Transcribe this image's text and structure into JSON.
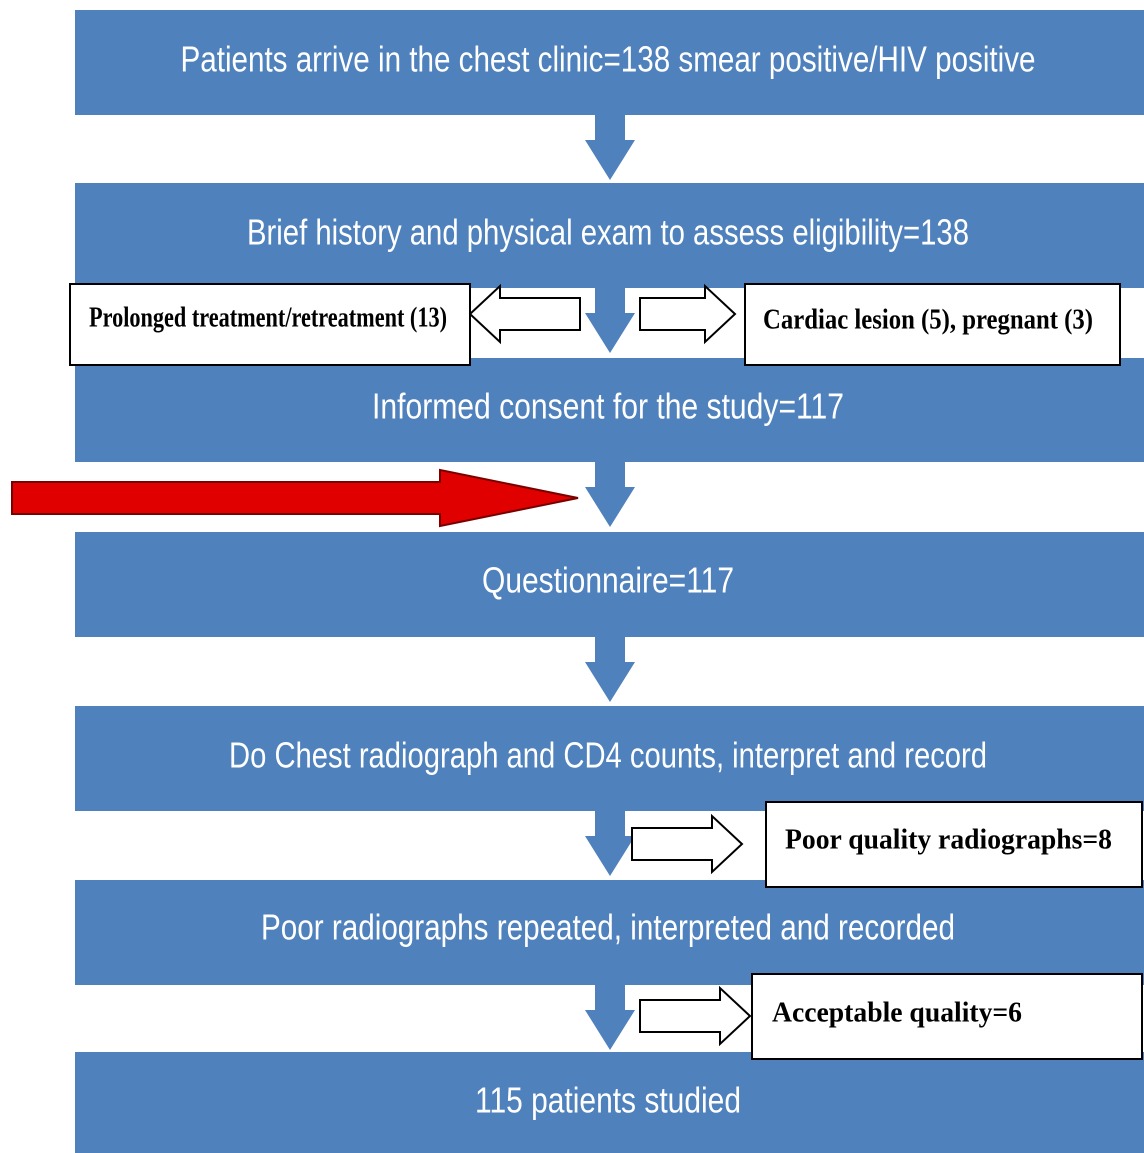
{
  "nodes": [
    {
      "label": "Patients arrive in the chest clinic=138 smear positive/HIV positive"
    },
    {
      "label": "Brief history and physical exam to assess eligibility=138"
    },
    {
      "label": "Informed consent for the study=117"
    },
    {
      "label": "Questionnaire=117"
    },
    {
      "label": "Do Chest radiograph and CD4 counts, interpret and record"
    },
    {
      "label": "Poor radiographs repeated, interpreted and recorded"
    },
    {
      "label": "115 patients studied"
    }
  ],
  "side_boxes": [
    {
      "label": "Prolonged treatment/retreatment  (13)"
    },
    {
      "label": "Cardiac lesion (5), pregnant (3)"
    },
    {
      "label": "Poor quality radiographs=8"
    },
    {
      "label": "Acceptable quality=6"
    }
  ]
}
